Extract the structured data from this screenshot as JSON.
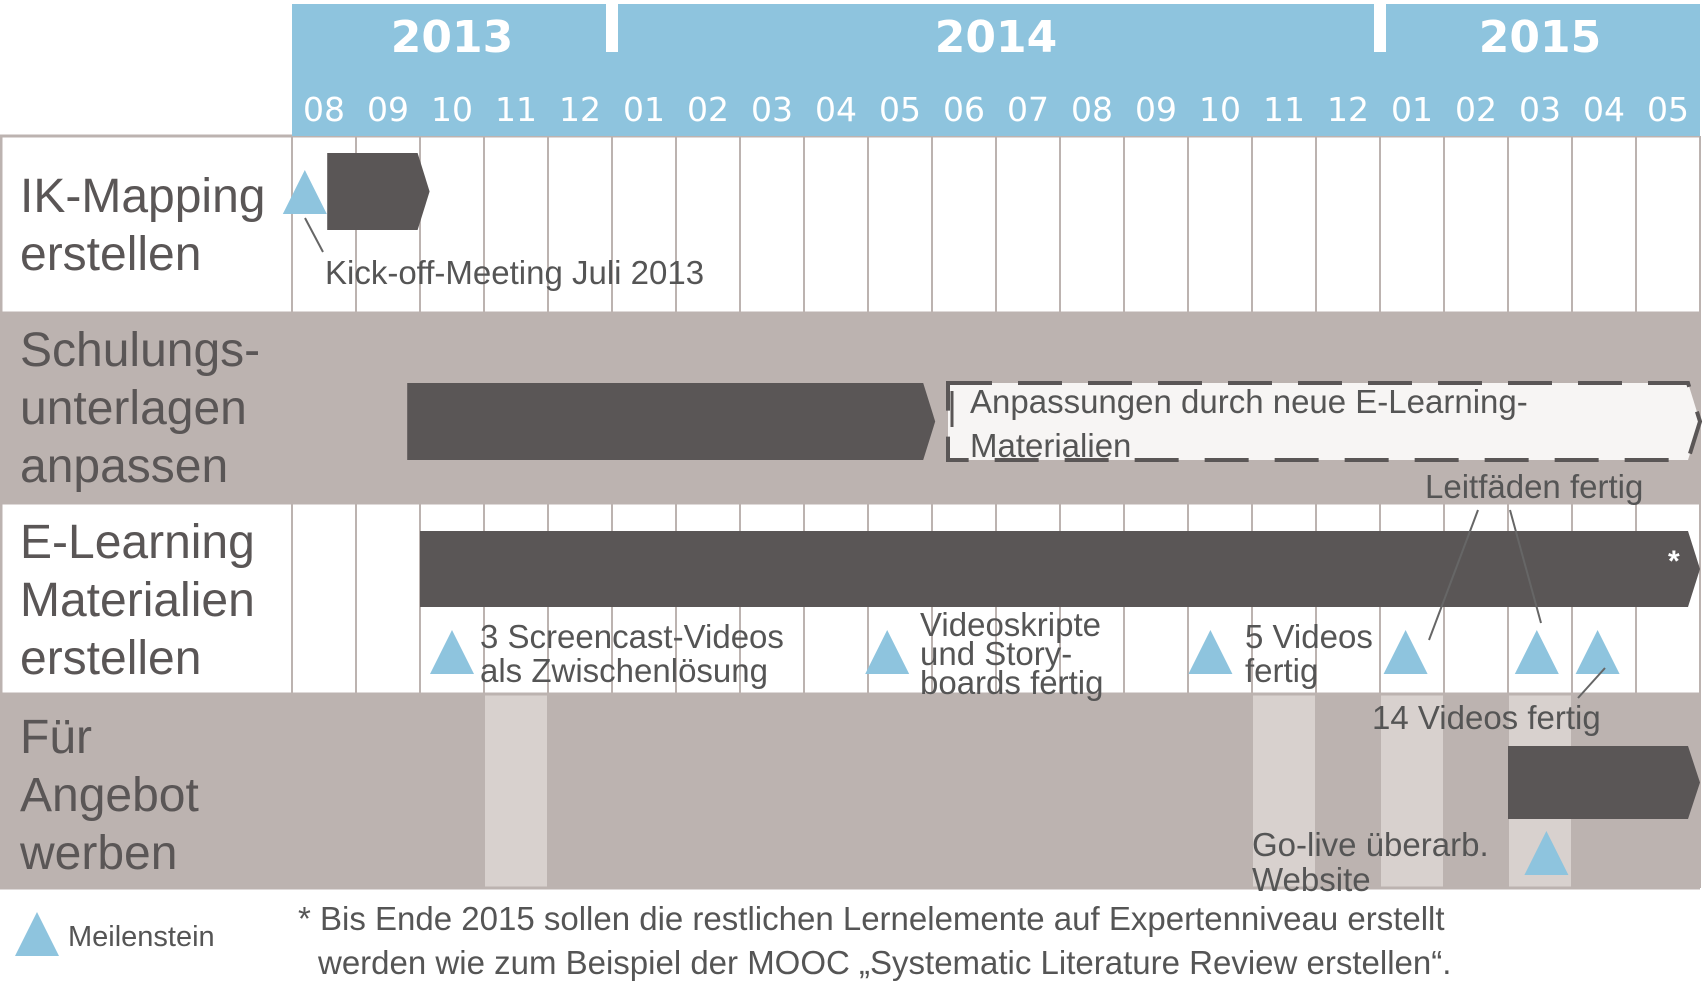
{
  "colors": {
    "header_blue": "#8ec4de",
    "milestone_blue": "#8ec4de",
    "bar_dark": "#5a5656",
    "row_gray": "#bcb3b0",
    "highlight_light": "#d8d1ce",
    "grid_line": "#bcb3b0",
    "text_gray": "#555555"
  },
  "years": [
    {
      "label": "2013",
      "month_count": 5
    },
    {
      "label": "2014",
      "month_count": 12
    },
    {
      "label": "2015",
      "month_count": 5
    }
  ],
  "months": [
    "08",
    "09",
    "10",
    "11",
    "12",
    "01",
    "02",
    "03",
    "04",
    "05",
    "06",
    "07",
    "08",
    "09",
    "10",
    "11",
    "12",
    "01",
    "02",
    "03",
    "04",
    "05"
  ],
  "rows": [
    {
      "lines": [
        "IK-Mapping",
        "erstellen"
      ],
      "shade": "white"
    },
    {
      "lines": [
        "Schulungs-",
        "unterlagen",
        "anpassen"
      ],
      "shade": "gray"
    },
    {
      "lines": [
        "E-Learning",
        "Materialien",
        "erstellen"
      ],
      "shade": "white"
    },
    {
      "lines": [
        "Für",
        "Angebot",
        "werben"
      ],
      "shade": "gray"
    }
  ],
  "bars": [
    {
      "row": 0,
      "start_month": 0.55,
      "end_month": 2.15,
      "style": "solid"
    },
    {
      "row": 1,
      "start_month": 1.8,
      "end_month": 10.05,
      "style": "solid"
    },
    {
      "row": 1,
      "start_month": 10.25,
      "end_month": 22,
      "style": "dashed",
      "label_lines": [
        "Anpassungen durch neue E-Learning-",
        "Materialien"
      ]
    },
    {
      "row": 2,
      "start_month": 2.0,
      "end_month": 22,
      "style": "solid",
      "end_marker": "*"
    },
    {
      "row": 3,
      "start_month": 19.0,
      "end_month": 22,
      "style": "solid"
    }
  ],
  "highlight_columns": [
    3,
    15,
    17,
    19
  ],
  "milestones": [
    {
      "row": 0,
      "month": 0.2,
      "label_lines": [
        "Kick-off-Meeting Juli 2013"
      ]
    },
    {
      "row": 2,
      "month": 2.5,
      "label_lines": [
        "3 Screencast-Videos",
        "als Zwischenlösung"
      ]
    },
    {
      "row": 2,
      "month": 9.3,
      "label_lines": [
        "Videoskripte",
        "und Story-",
        "boards fertig"
      ]
    },
    {
      "row": 2,
      "month": 14.35,
      "label_lines": [
        "5 Videos",
        "fertig"
      ]
    },
    {
      "row": 2,
      "month": 17.4,
      "label_lines": [
        "Leitfäden fertig"
      ]
    },
    {
      "row": 2,
      "month": 19.45
    },
    {
      "row": 2,
      "month": 20.4,
      "label_lines": [
        "14 Videos fertig"
      ]
    },
    {
      "row": 3,
      "month": 19.6,
      "label_lines": [
        "Go-live überarb.",
        "Website"
      ]
    }
  ],
  "legend": {
    "label": "Meilenstein"
  },
  "footnote": {
    "lines": [
      "* Bis Ende 2015 sollen die restlichen Lernelemente auf Expertenniveau erstellt",
      "werden wie  zum Beispiel der MOOC „Systematic Literature Review erstellen“."
    ]
  }
}
